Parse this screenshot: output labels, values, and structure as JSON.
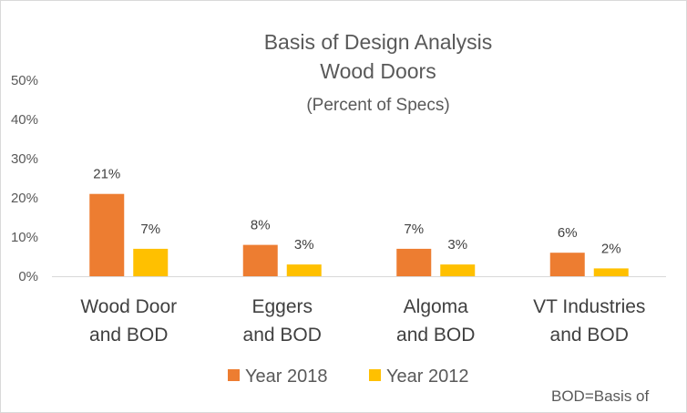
{
  "chart_data": {
    "type": "bar",
    "title": [
      "Basis of Design Analysis",
      "Wood Doors"
    ],
    "subtitle": "(Percent of Specs)",
    "categories": [
      [
        "Wood Door",
        "and BOD"
      ],
      [
        "Eggers",
        "and BOD"
      ],
      [
        "Algoma",
        "and BOD"
      ],
      [
        "VT Industries",
        "and BOD"
      ]
    ],
    "series": [
      {
        "name": "Year 2018",
        "color": "#ed7d31",
        "values": [
          21,
          8,
          7,
          6
        ],
        "labels": [
          "21%",
          "8%",
          "7%",
          "6%"
        ]
      },
      {
        "name": "Year 2012",
        "color": "#ffc000",
        "values": [
          7,
          3,
          3,
          2
        ],
        "labels": [
          "7%",
          "3%",
          "3%",
          "2%"
        ]
      }
    ],
    "ylim": [
      0,
      50
    ],
    "yticks": [
      0,
      10,
      20,
      30,
      40,
      50
    ],
    "ytick_labels": [
      "0%",
      "10%",
      "20%",
      "30%",
      "40%",
      "50%"
    ],
    "legend_position": "bottom",
    "grid": false,
    "note": "BOD=Basis of"
  }
}
